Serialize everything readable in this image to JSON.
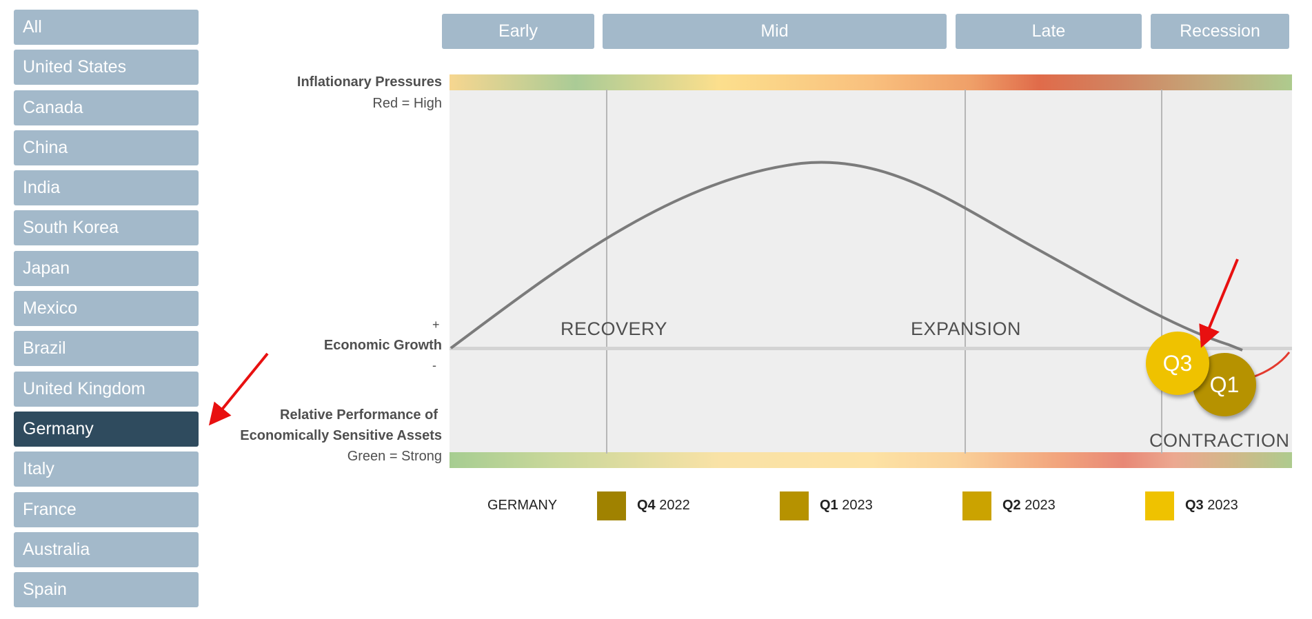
{
  "sidebar": {
    "items": [
      {
        "label": "All"
      },
      {
        "label": "United States"
      },
      {
        "label": "Canada"
      },
      {
        "label": "China"
      },
      {
        "label": "India"
      },
      {
        "label": "South Korea"
      },
      {
        "label": "Japan"
      },
      {
        "label": "Mexico"
      },
      {
        "label": "Brazil"
      },
      {
        "label": "United Kingdom"
      },
      {
        "label": "Germany"
      },
      {
        "label": "Italy"
      },
      {
        "label": "France"
      },
      {
        "label": "Australia"
      },
      {
        "label": "Spain"
      }
    ],
    "selected": "Germany"
  },
  "phases": {
    "early": "Early",
    "mid": "Mid",
    "late": "Late",
    "recession": "Recession"
  },
  "axes": {
    "inflation_title": "Inflationary Pressures",
    "inflation_sub": "Red = High",
    "growth_plus": "+",
    "growth_title": "Economic Growth",
    "growth_minus": "-",
    "performance_title_1": "Relative Performance of",
    "performance_title_2": "Economically Sensitive Assets",
    "performance_sub": "Green = Strong"
  },
  "regions": {
    "recovery": "RECOVERY",
    "expansion": "EXPANSION",
    "contraction": "CONTRACTION"
  },
  "markers": {
    "q3": "Q3",
    "q1": "Q1"
  },
  "legend": {
    "country": "GERMANY",
    "items": [
      {
        "quarter": "Q4",
        "year": "2022",
        "color": "#a08200"
      },
      {
        "quarter": "Q1",
        "year": "2023",
        "color": "#b69200"
      },
      {
        "quarter": "Q2",
        "year": "2023",
        "color": "#cba300"
      },
      {
        "quarter": "Q3",
        "year": "2023",
        "color": "#efc200"
      }
    ]
  },
  "colors": {
    "sidebar_button": "#a3b9ca",
    "sidebar_active": "#2f4b5e",
    "arrow": "#e81010"
  }
}
